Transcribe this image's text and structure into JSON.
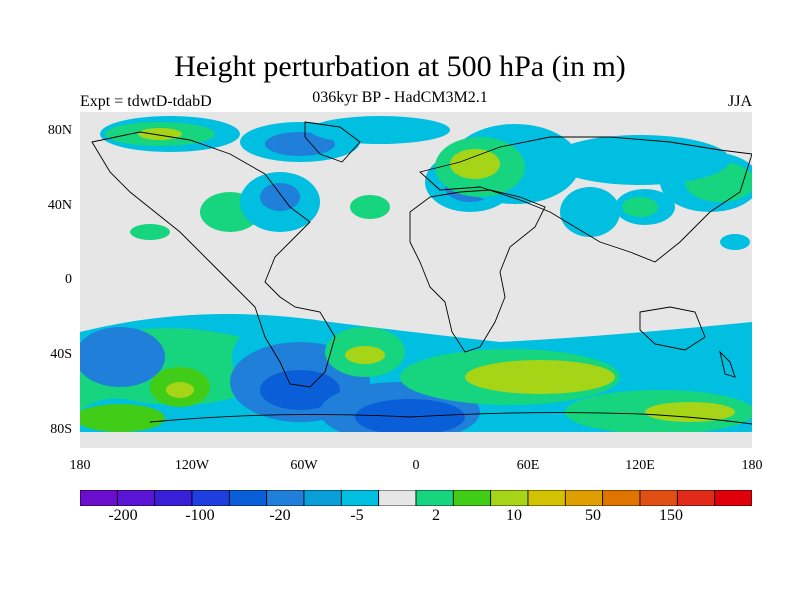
{
  "title": "Height perturbation at 500 hPa (in m)",
  "subtitle": "036kyr BP - HadCM3M2.1",
  "left_label": "Expt = tdwtD-tdabD",
  "right_label": "JJA",
  "lat_ticks": [
    "80N",
    "40N",
    "0",
    "40S",
    "80S"
  ],
  "lon_ticks": [
    "180",
    "120W",
    "60W",
    "0",
    "60E",
    "120E",
    "180"
  ],
  "colorbar": {
    "colors": [
      "#6a0dcc",
      "#5a14d4",
      "#3a1ed8",
      "#1f3ee0",
      "#0a5fd9",
      "#1f7fd9",
      "#0a9fd9",
      "#00bfe0",
      "#e6e6e6",
      "#17d47f",
      "#40cc17",
      "#a6d417",
      "#d4c100",
      "#e09f00",
      "#e07400",
      "#e05014",
      "#e02a1a",
      "#e0000a"
    ],
    "labels": [
      "-200",
      "-100",
      "-20",
      "-5",
      "2",
      "10",
      "50",
      "150"
    ]
  }
}
